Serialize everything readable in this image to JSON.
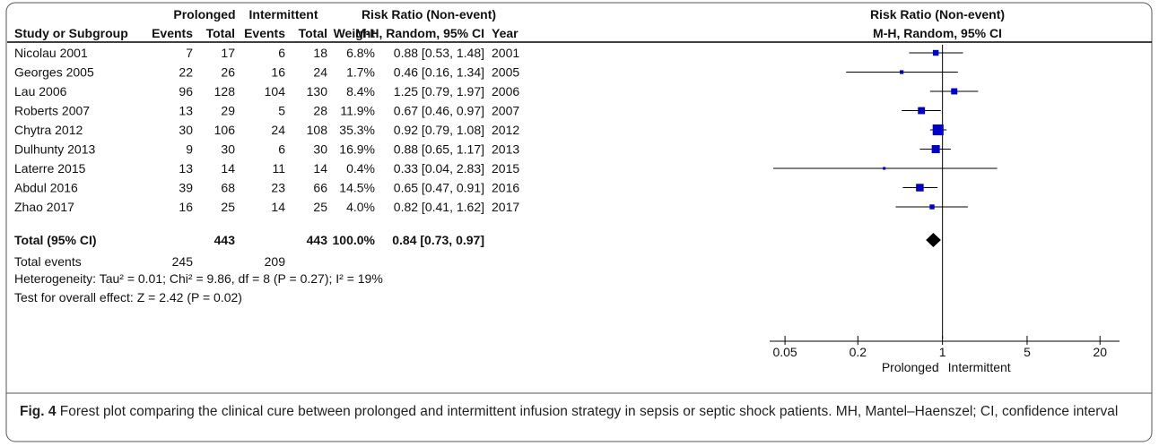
{
  "chart_data": {
    "type": "forest",
    "group_headers": {
      "prolonged": "Prolonged",
      "intermittent": "Intermittent",
      "rr_table": "Risk Ratio (Non-event)",
      "rr_plot": "Risk Ratio (Non-event)"
    },
    "columns": {
      "study": "Study or Subgroup",
      "e1": "Events",
      "t1": "Total",
      "e2": "Events",
      "t2": "Total",
      "weight": "Weight",
      "ci": "M-H, Random, 95% CI",
      "year": "Year",
      "plot_ci": "M-H, Random, 95% CI"
    },
    "studies": [
      {
        "name": "Nicolau 2001",
        "e1": 7,
        "t1": 17,
        "e2": 6,
        "t2": 18,
        "weight": 6.8,
        "weight_label": "6.8%",
        "rr": 0.88,
        "lo": 0.53,
        "hi": 1.48,
        "ci_label": "0.88 [0.53, 1.48]",
        "year": 2001
      },
      {
        "name": "Georges 2005",
        "e1": 22,
        "t1": 26,
        "e2": 16,
        "t2": 24,
        "weight": 1.7,
        "weight_label": "1.7%",
        "rr": 0.46,
        "lo": 0.16,
        "hi": 1.34,
        "ci_label": "0.46 [0.16, 1.34]",
        "year": 2005
      },
      {
        "name": "Lau 2006",
        "e1": 96,
        "t1": 128,
        "e2": 104,
        "t2": 130,
        "weight": 8.4,
        "weight_label": "8.4%",
        "rr": 1.25,
        "lo": 0.79,
        "hi": 1.97,
        "ci_label": "1.25 [0.79, 1.97]",
        "year": 2006
      },
      {
        "name": "Roberts 2007",
        "e1": 13,
        "t1": 29,
        "e2": 5,
        "t2": 28,
        "weight": 11.9,
        "weight_label": "11.9%",
        "rr": 0.67,
        "lo": 0.46,
        "hi": 0.97,
        "ci_label": "0.67 [0.46, 0.97]",
        "year": 2007
      },
      {
        "name": "Chytra 2012",
        "e1": 30,
        "t1": 106,
        "e2": 24,
        "t2": 108,
        "weight": 35.3,
        "weight_label": "35.3%",
        "rr": 0.92,
        "lo": 0.79,
        "hi": 1.08,
        "ci_label": "0.92 [0.79, 1.08]",
        "year": 2012
      },
      {
        "name": "Dulhunty 2013",
        "e1": 9,
        "t1": 30,
        "e2": 6,
        "t2": 30,
        "weight": 16.9,
        "weight_label": "16.9%",
        "rr": 0.88,
        "lo": 0.65,
        "hi": 1.17,
        "ci_label": "0.88 [0.65, 1.17]",
        "year": 2013
      },
      {
        "name": "Laterre 2015",
        "e1": 13,
        "t1": 14,
        "e2": 11,
        "t2": 14,
        "weight": 0.4,
        "weight_label": "0.4%",
        "rr": 0.33,
        "lo": 0.04,
        "hi": 2.83,
        "ci_label": "0.33 [0.04, 2.83]",
        "year": 2015
      },
      {
        "name": "Abdul 2016",
        "e1": 39,
        "t1": 68,
        "e2": 23,
        "t2": 66,
        "weight": 14.5,
        "weight_label": "14.5%",
        "rr": 0.65,
        "lo": 0.47,
        "hi": 0.91,
        "ci_label": "0.65 [0.47, 0.91]",
        "year": 2016
      },
      {
        "name": "Zhao 2017",
        "e1": 16,
        "t1": 25,
        "e2": 14,
        "t2": 25,
        "weight": 4.0,
        "weight_label": "4.0%",
        "rr": 0.82,
        "lo": 0.41,
        "hi": 1.62,
        "ci_label": "0.82 [0.41, 1.62]",
        "year": 2017
      }
    ],
    "total": {
      "name": "Total (95% CI)",
      "t1": 443,
      "t2": 443,
      "weight_label": "100.0%",
      "rr": 0.84,
      "lo": 0.73,
      "hi": 0.97,
      "ci_label": "0.84 [0.73, 0.97]"
    },
    "total_events": {
      "name": "Total events",
      "e1": 245,
      "e2": 209
    },
    "heterogeneity": "Heterogeneity: Tau² = 0.01; Chi² = 9.86, df = 8 (P = 0.27); I² = 19%",
    "overall_effect": "Test for overall effect: Z = 2.42 (P = 0.02)",
    "x_scale": "log",
    "xlim": [
      0.04,
      29
    ],
    "xticks": [
      0.05,
      0.2,
      1,
      5,
      20
    ],
    "favours": {
      "left": "Prolonged",
      "right": "Intermittent"
    },
    "color": "#0000cc",
    "caption": {
      "label": "Fig. 4",
      "text": "Forest plot comparing the clinical cure between prolonged and intermittent infusion strategy in sepsis or septic shock patients. MH, Mantel–Haenszel; CI, confidence interval"
    }
  }
}
